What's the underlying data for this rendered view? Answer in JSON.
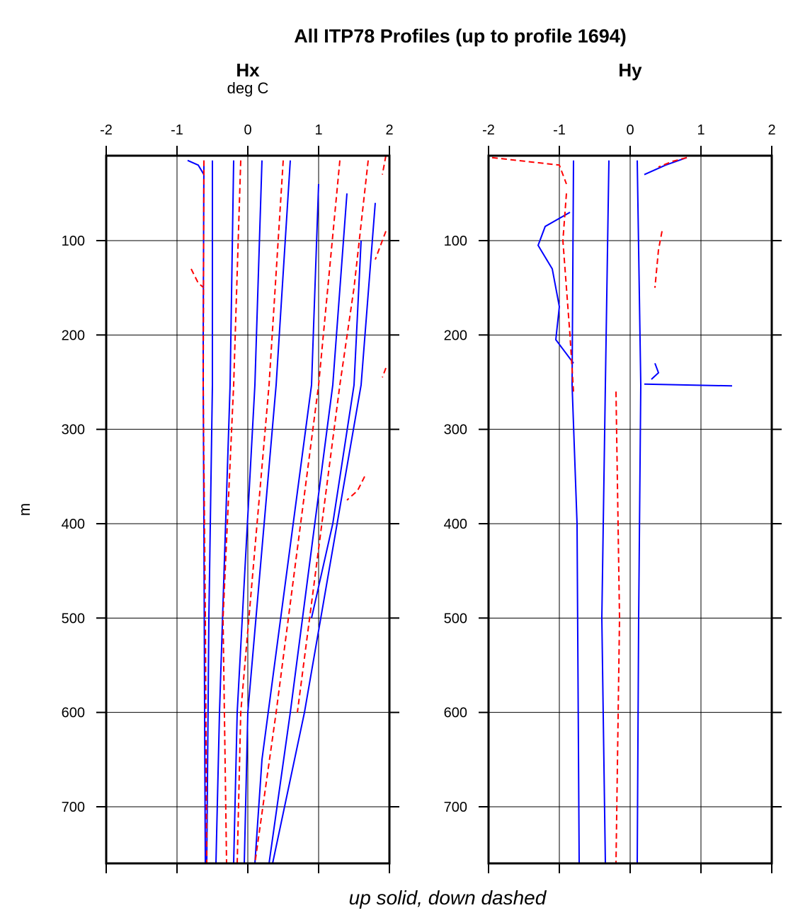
{
  "chart_data": {
    "type": "line",
    "title": "All ITP78 Profiles (up to profile 1694)",
    "ylabel": "m",
    "footer": "up solid, down dashed",
    "y_reversed": true,
    "ylim": [
      10,
      760
    ],
    "y_ticks": [
      100,
      200,
      300,
      400,
      500,
      600,
      700
    ],
    "grid": true,
    "colors": {
      "up": "#0000ff",
      "down": "#ff0000"
    },
    "line_styles": {
      "up": "solid",
      "down": "dashed"
    },
    "panels": [
      {
        "name": "Hx",
        "units": "deg C",
        "xlim": [
          -2,
          2
        ],
        "x_ticks": [
          -2,
          -1,
          0,
          1,
          2
        ],
        "series": [
          {
            "style": "up",
            "points": [
              [
                -0.62,
                15
              ],
              [
                -0.63,
                200
              ],
              [
                -0.63,
                253
              ],
              [
                -0.62,
                400
              ],
              [
                -0.61,
                600
              ],
              [
                -0.6,
                760
              ]
            ]
          },
          {
            "style": "up",
            "points": [
              [
                -0.5,
                15
              ],
              [
                -0.5,
                253
              ],
              [
                -0.55,
                500
              ],
              [
                -0.58,
                760
              ]
            ]
          },
          {
            "style": "up",
            "points": [
              [
                -0.2,
                15
              ],
              [
                -0.25,
                253
              ],
              [
                -0.4,
                600
              ],
              [
                -0.45,
                760
              ]
            ]
          },
          {
            "style": "up",
            "points": [
              [
                0.2,
                15
              ],
              [
                0.1,
                253
              ],
              [
                -0.15,
                600
              ],
              [
                -0.2,
                760
              ]
            ]
          },
          {
            "style": "up",
            "points": [
              [
                0.6,
                15
              ],
              [
                0.4,
                253
              ],
              [
                0.0,
                600
              ],
              [
                -0.05,
                760
              ]
            ]
          },
          {
            "style": "up",
            "points": [
              [
                1.0,
                40
              ],
              [
                0.9,
                253
              ],
              [
                0.2,
                650
              ],
              [
                0.1,
                760
              ]
            ]
          },
          {
            "style": "up",
            "points": [
              [
                1.4,
                50
              ],
              [
                1.2,
                253
              ],
              [
                0.6,
                600
              ],
              [
                0.3,
                760
              ]
            ]
          },
          {
            "style": "up",
            "points": [
              [
                1.8,
                60
              ],
              [
                1.6,
                253
              ],
              [
                0.8,
                600
              ],
              [
                0.35,
                760
              ]
            ]
          },
          {
            "style": "up",
            "points": [
              [
                1.6,
                100
              ],
              [
                1.5,
                253
              ],
              [
                1.2,
                400
              ],
              [
                0.9,
                500
              ]
            ]
          },
          {
            "style": "up",
            "points": [
              [
                -0.85,
                15
              ],
              [
                -0.7,
                20
              ],
              [
                -0.62,
                30
              ]
            ]
          },
          {
            "style": "down",
            "points": [
              [
                -0.8,
                130
              ],
              [
                -0.7,
                145
              ],
              [
                -0.62,
                150
              ]
            ]
          },
          {
            "style": "down",
            "points": [
              [
                -0.62,
                15
              ],
              [
                -0.63,
                253
              ],
              [
                -0.6,
                500
              ],
              [
                -0.58,
                760
              ]
            ]
          },
          {
            "style": "down",
            "points": [
              [
                -0.1,
                15
              ],
              [
                -0.2,
                253
              ],
              [
                -0.35,
                500
              ],
              [
                -0.3,
                760
              ]
            ]
          },
          {
            "style": "down",
            "points": [
              [
                0.5,
                15
              ],
              [
                0.3,
                253
              ],
              [
                -0.1,
                600
              ],
              [
                -0.15,
                760
              ]
            ]
          },
          {
            "style": "down",
            "points": [
              [
                1.3,
                15
              ],
              [
                1.0,
                253
              ],
              [
                0.4,
                600
              ],
              [
                0.1,
                760
              ]
            ]
          },
          {
            "style": "down",
            "points": [
              [
                1.7,
                15
              ],
              [
                1.5,
                150
              ],
              [
                1.3,
                253
              ],
              [
                0.7,
                600
              ]
            ]
          },
          {
            "style": "down",
            "points": [
              [
                1.95,
                10
              ],
              [
                1.9,
                30
              ]
            ]
          },
          {
            "style": "down",
            "points": [
              [
                1.95,
                235
              ],
              [
                1.9,
                245
              ]
            ]
          },
          {
            "style": "down",
            "points": [
              [
                1.65,
                350
              ],
              [
                1.55,
                365
              ],
              [
                1.4,
                375
              ]
            ]
          },
          {
            "style": "down",
            "points": [
              [
                1.95,
                90
              ],
              [
                1.8,
                120
              ]
            ]
          }
        ]
      },
      {
        "name": "Hy",
        "units": "",
        "xlim": [
          -2,
          2
        ],
        "x_ticks": [
          -2,
          -1,
          0,
          1,
          2
        ],
        "series": [
          {
            "style": "up",
            "points": [
              [
                -0.8,
                15
              ],
              [
                -0.82,
                253
              ],
              [
                -0.75,
                400
              ],
              [
                -0.72,
                760
              ]
            ]
          },
          {
            "style": "up",
            "points": [
              [
                0.1,
                15
              ],
              [
                0.15,
                253
              ],
              [
                0.12,
                500
              ],
              [
                0.1,
                760
              ]
            ]
          },
          {
            "style": "up",
            "points": [
              [
                -0.3,
                15
              ],
              [
                -0.35,
                253
              ],
              [
                -0.4,
                500
              ],
              [
                -0.35,
                760
              ]
            ]
          },
          {
            "style": "up",
            "points": [
              [
                0.8,
                12
              ],
              [
                0.5,
                20
              ],
              [
                0.2,
                30
              ]
            ]
          },
          {
            "style": "up",
            "points": [
              [
                -0.85,
                70
              ],
              [
                -1.2,
                85
              ],
              [
                -1.3,
                105
              ],
              [
                -1.1,
                130
              ],
              [
                -1.0,
                170
              ],
              [
                -1.05,
                205
              ],
              [
                -0.8,
                230
              ]
            ]
          },
          {
            "style": "up",
            "points": [
              [
                0.2,
                252
              ],
              [
                1.44,
                254
              ]
            ]
          },
          {
            "style": "up",
            "points": [
              [
                0.35,
                230
              ],
              [
                0.4,
                240
              ],
              [
                0.3,
                247
              ]
            ]
          },
          {
            "style": "down",
            "points": [
              [
                -1.95,
                12
              ],
              [
                -1.0,
                20
              ],
              [
                -0.9,
                40
              ]
            ]
          },
          {
            "style": "down",
            "points": [
              [
                -0.9,
                50
              ],
              [
                -0.95,
                100
              ],
              [
                -0.85,
                200
              ],
              [
                -0.8,
                260
              ]
            ]
          },
          {
            "style": "down",
            "points": [
              [
                -0.2,
                260
              ],
              [
                -0.15,
                500
              ],
              [
                -0.2,
                760
              ]
            ]
          },
          {
            "style": "down",
            "points": [
              [
                0.45,
                90
              ],
              [
                0.4,
                110
              ],
              [
                0.35,
                150
              ]
            ]
          },
          {
            "style": "down",
            "points": [
              [
                0.8,
                12
              ],
              [
                0.6,
                16
              ],
              [
                0.4,
                22
              ]
            ]
          }
        ]
      }
    ]
  }
}
